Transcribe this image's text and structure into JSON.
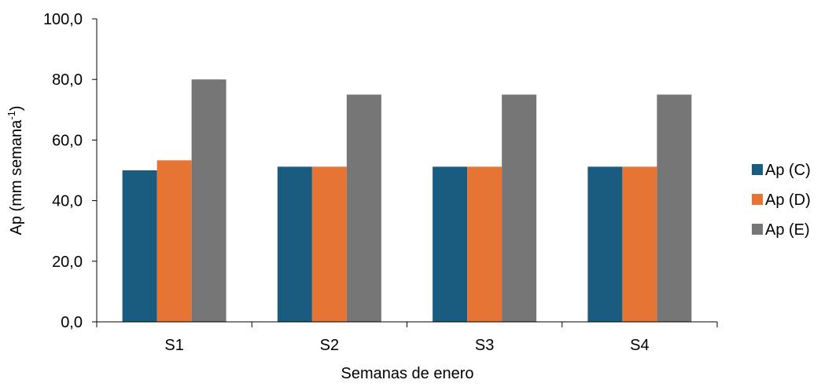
{
  "chart_data": {
    "type": "bar",
    "categories": [
      "S1",
      "S2",
      "S3",
      "S4"
    ],
    "series": [
      {
        "name": "Ap (C)",
        "values": [
          50.0,
          51.2,
          51.2,
          51.2
        ],
        "color": "#1a5b80"
      },
      {
        "name": "Ap (D)",
        "values": [
          53.3,
          51.2,
          51.2,
          51.2
        ],
        "color": "#e67435"
      },
      {
        "name": "Ap (E)",
        "values": [
          80.0,
          75.0,
          75.0,
          75.0
        ],
        "color": "#767676"
      }
    ],
    "xlabel": "Semanas de enero",
    "ylabel_main": "Ap (mm semana",
    "ylabel_sup": "-1",
    "ylabel_end": ")",
    "ylim": [
      0,
      100
    ],
    "yticks": [
      "0,0",
      "20,0",
      "40,0",
      "60,0",
      "80,0",
      "100,0"
    ],
    "grid": false,
    "legend_position": "right"
  }
}
